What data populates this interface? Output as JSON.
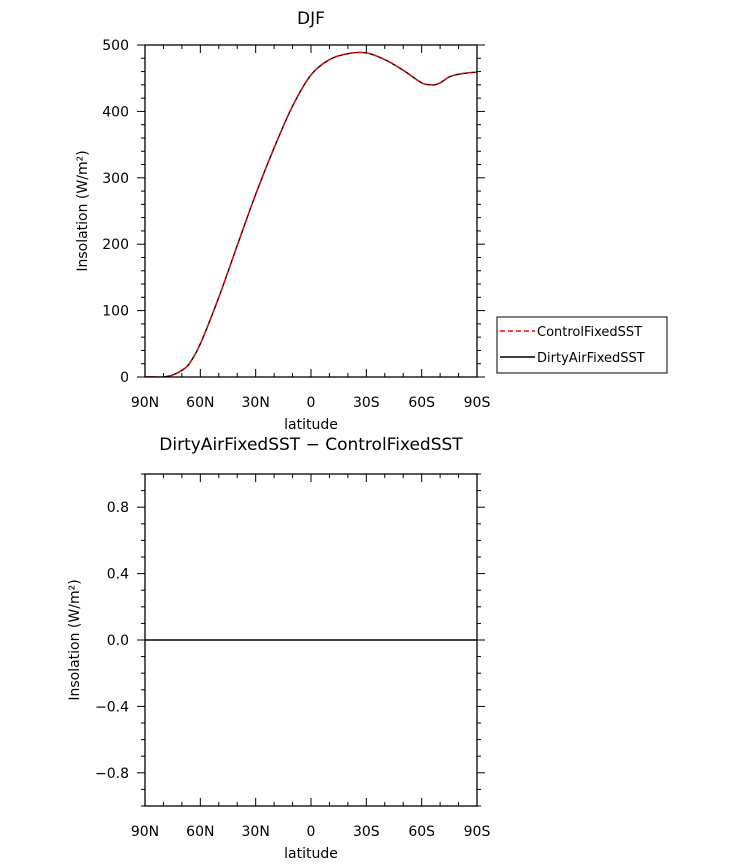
{
  "chart_data": [
    {
      "type": "line",
      "title": "DJF",
      "xlabel": "latitude",
      "ylabel": "Insolation (W/m²)",
      "xlim": [
        -90,
        90
      ],
      "ylim": [
        0,
        500
      ],
      "x_ticks": [
        -90,
        -60,
        -30,
        0,
        30,
        60,
        90
      ],
      "x_tick_labels": [
        "90N",
        "60N",
        "30N",
        "0",
        "30S",
        "60S",
        "90S"
      ],
      "y_ticks": [
        0,
        100,
        200,
        300,
        400,
        500
      ],
      "y_tick_labels": [
        "0",
        "100",
        "200",
        "300",
        "400",
        "500"
      ],
      "x": [
        -90,
        -85,
        -80,
        -75,
        -70,
        -66,
        -60,
        -50,
        -40,
        -30,
        -20,
        -10,
        0,
        10,
        20,
        30,
        40,
        50,
        60,
        65,
        67,
        70,
        75,
        80,
        85,
        90
      ],
      "series": [
        {
          "name": "ControlFixedSST",
          "color": "#ff0000",
          "dash": "dashed",
          "values": [
            0,
            0,
            0,
            3,
            10,
            20,
            50,
            120,
            198,
            275,
            345,
            408,
            455,
            478,
            487,
            488,
            478,
            462,
            443,
            440,
            440,
            443,
            452,
            456,
            458,
            459
          ]
        },
        {
          "name": "DirtyAirFixedSST",
          "color": "#000000",
          "dash": "solid",
          "values": [
            0,
            0,
            0,
            3,
            10,
            20,
            50,
            120,
            198,
            275,
            345,
            408,
            455,
            478,
            487,
            488,
            478,
            462,
            443,
            440,
            440,
            443,
            452,
            456,
            458,
            459
          ]
        }
      ],
      "legend": "right"
    },
    {
      "type": "line",
      "title": "DirtyAirFixedSST − ControlFixedSST",
      "xlabel": "latitude",
      "ylabel": "Insolation (W/m²)",
      "xlim": [
        -90,
        90
      ],
      "ylim": [
        -1,
        1
      ],
      "x_ticks": [
        -90,
        -60,
        -30,
        0,
        30,
        60,
        90
      ],
      "x_tick_labels": [
        "90N",
        "60N",
        "30N",
        "0",
        "30S",
        "60S",
        "90S"
      ],
      "y_ticks": [
        -0.8,
        -0.4,
        0.0,
        0.4,
        0.8
      ],
      "y_tick_labels": [
        "−0.8",
        "−0.4",
        "0.0",
        "0.4",
        "0.8"
      ],
      "x": [
        -90,
        90
      ],
      "series": [
        {
          "color": "#000000",
          "dash": "solid",
          "values": [
            0,
            0
          ]
        }
      ]
    }
  ]
}
